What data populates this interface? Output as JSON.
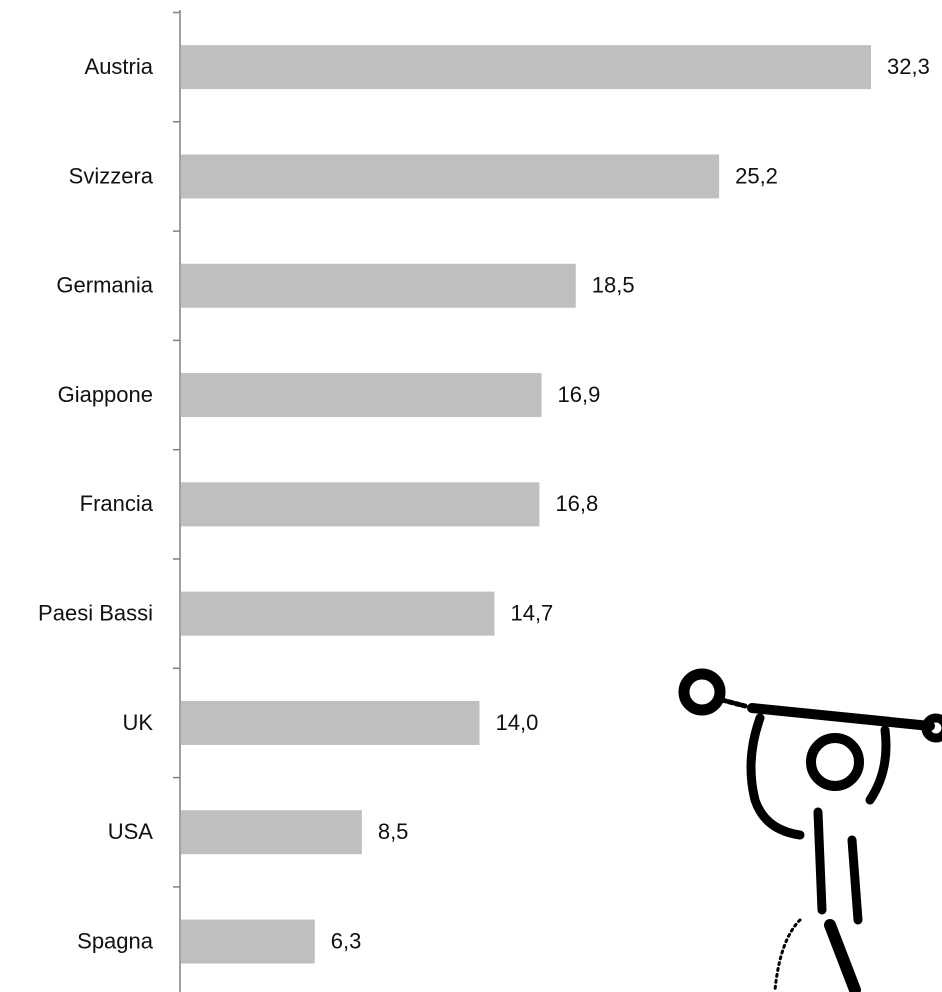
{
  "chart_data": {
    "type": "bar",
    "orientation": "horizontal",
    "categories": [
      "Austria",
      "Svizzera",
      "Germania",
      "Giappone",
      "Francia",
      "Paesi Bassi",
      "UK",
      "USA",
      "Spagna"
    ],
    "values": [
      32.3,
      25.2,
      18.5,
      16.9,
      16.8,
      14.7,
      14.0,
      8.5,
      6.3
    ],
    "value_labels": [
      "32,3",
      "25,2",
      "18,5",
      "16,9",
      "16,8",
      "14,7",
      "14,0",
      "8,5",
      "6,3"
    ],
    "color": "#bfbfbf"
  }
}
